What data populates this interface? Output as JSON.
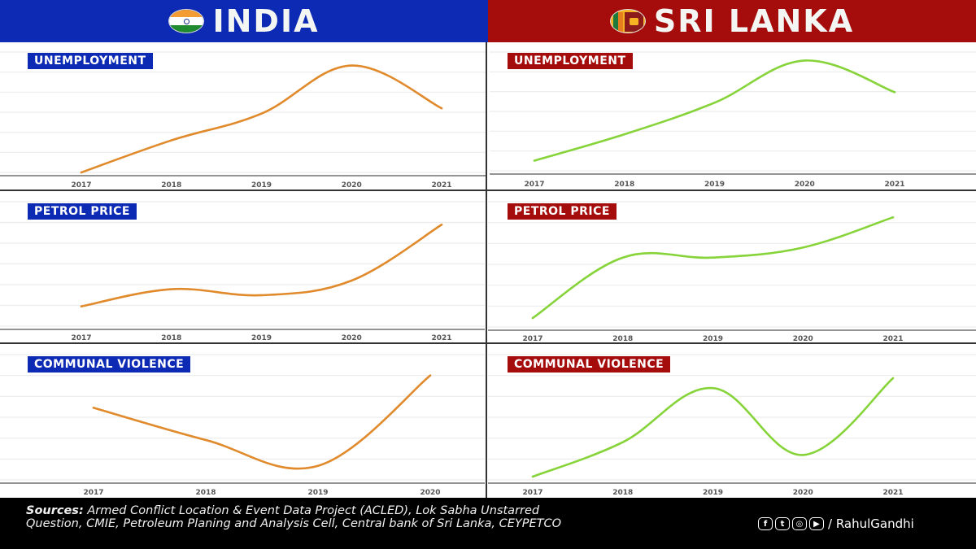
{
  "headers": {
    "india": {
      "title": "INDIA",
      "flag_icon": "india-flag-icon"
    },
    "lanka": {
      "title": "SRI LANKA",
      "flag_icon": "sri-lanka-flag-icon"
    }
  },
  "colors": {
    "india_accent": "#0c2ab4",
    "lanka_accent": "#a50c0c",
    "india_line": "#e08a2c",
    "lanka_line": "#86d43a"
  },
  "chart_data": [
    {
      "id": "india-unemployment",
      "type": "line",
      "title": "UNEMPLOYMENT",
      "country": "India",
      "categories": [
        "2017",
        "2018",
        "2019",
        "2020",
        "2021"
      ],
      "values": [
        0.0,
        0.3,
        0.55,
        1.0,
        0.6
      ],
      "ylim": [
        0,
        1.05
      ],
      "grid": true
    },
    {
      "id": "lanka-unemployment",
      "type": "line",
      "title": "UNEMPLOYMENT",
      "country": "Sri Lanka",
      "categories": [
        "2017",
        "2018",
        "2019",
        "2020",
        "2021"
      ],
      "values": [
        0.05,
        0.3,
        0.6,
        1.0,
        0.7
      ],
      "ylim": [
        0,
        1.05
      ],
      "grid": true
    },
    {
      "id": "india-petrol",
      "type": "line",
      "title": "PETROL PRICE",
      "country": "India",
      "categories": [
        "2017",
        "2018",
        "2019",
        "2020",
        "2021"
      ],
      "values": [
        0.05,
        0.25,
        0.18,
        0.35,
        1.0
      ],
      "ylim": [
        0,
        1.05
      ],
      "grid": true
    },
    {
      "id": "lanka-petrol",
      "type": "line",
      "title": "PETROL PRICE",
      "country": "Sri Lanka",
      "categories": [
        "2017",
        "2018",
        "2019",
        "2020",
        "2021"
      ],
      "values": [
        0.0,
        0.6,
        0.6,
        0.7,
        1.0
      ],
      "ylim": [
        0,
        1.05
      ],
      "grid": true
    },
    {
      "id": "india-violence",
      "type": "line",
      "title": "COMMUNAL VIOLENCE",
      "country": "India",
      "categories": [
        "2017",
        "2018",
        "2019",
        "2020"
      ],
      "values": [
        0.65,
        0.3,
        0.02,
        1.0
      ],
      "ylim": [
        0,
        1.05
      ],
      "grid": true
    },
    {
      "id": "lanka-violence",
      "type": "line",
      "title": "COMMUNAL VIOLENCE",
      "country": "Sri Lanka",
      "categories": [
        "2017",
        "2018",
        "2019",
        "2020",
        "2021"
      ],
      "values": [
        0.0,
        0.35,
        0.9,
        0.22,
        1.0
      ],
      "ylim": [
        0,
        1.05
      ],
      "grid": true
    }
  ],
  "footer": {
    "sources_label": "Sources:",
    "sources_text": " Armed Conflict Location & Event Data Project (ACLED), Lok Sabha Unstarred Question, CMIE, Petroleum Planing and Analysis Cell, Central bank of Sri Lanka, CEYPETCO",
    "handle": "/ RahulGandhi",
    "social_icons": [
      "facebook-icon",
      "twitter-icon",
      "instagram-icon",
      "youtube-icon"
    ]
  }
}
